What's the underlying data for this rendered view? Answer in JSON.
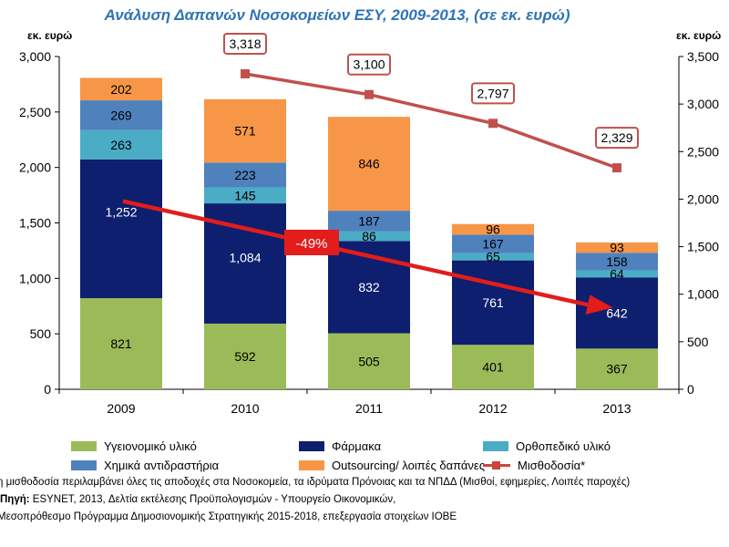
{
  "chart_data": {
    "type": "stacked-bar+line",
    "title": "Ανάλυση Δαπανών Νοσοκομείων ΕΣΥ, 2009-2013, (σε εκ. ευρώ)",
    "ylabel_left": "εκ. ευρώ",
    "ylabel_right": "εκ. ευρώ",
    "ylim_left": [
      0,
      3000
    ],
    "ylim_right": [
      0,
      3500
    ],
    "yticks_left": [
      "0",
      "500",
      "1,000",
      "1,500",
      "2,000",
      "2,500",
      "3,000"
    ],
    "yticks_right": [
      "0",
      "500",
      "1,000",
      "1,500",
      "2,000",
      "2,500",
      "3,000",
      "3,500"
    ],
    "categories": [
      "2009",
      "2010",
      "2011",
      "2012",
      "2013"
    ],
    "series": [
      {
        "name": "Υγειονομικό υλικό",
        "color": "#9bbb59",
        "values": [
          821,
          592,
          505,
          401,
          367
        ],
        "labels": [
          "821",
          "592",
          "505",
          "401",
          "367"
        ]
      },
      {
        "name": "Φάρμακα",
        "color": "#0d1f6e",
        "values": [
          1252,
          1084,
          832,
          761,
          642
        ],
        "labels": [
          "1,252",
          "1,084",
          "832",
          "761",
          "642"
        ]
      },
      {
        "name": "Ορθοπεδικό υλικό",
        "color": "#4bacc6",
        "values": [
          263,
          145,
          86,
          65,
          64
        ],
        "labels": [
          "263",
          "145",
          "86",
          "65",
          "64"
        ]
      },
      {
        "name": "Χημικά αντιδραστήρια",
        "color": "#4f81bd",
        "values": [
          269,
          223,
          187,
          167,
          158
        ],
        "labels": [
          "269",
          "223",
          "187",
          "167",
          "158"
        ]
      },
      {
        "name": "Outsourcing/ λοιπές δαπάνες",
        "color": "#f79646",
        "values": [
          202,
          571,
          846,
          96,
          93
        ],
        "labels": [
          "202",
          "571",
          "846",
          "96",
          "93"
        ]
      }
    ],
    "line_series": {
      "name": "Μισθοδοσία*",
      "color": "#c0504d",
      "axis": "right",
      "x": [
        "2010",
        "2011",
        "2012",
        "2013"
      ],
      "values": [
        3318,
        3100,
        2797,
        2329
      ],
      "labels": [
        "3,318",
        "3,100",
        "2,797",
        "2,329"
      ]
    },
    "annotation": {
      "text": "-49%",
      "from": "2009",
      "to": "2013",
      "color": "#e31c1c"
    }
  },
  "notes": {
    "line1": "η μισθοδοσία περιλαμβάνει όλες τις αποδοχές στα Νοσοκομεία, τα ιδρύματα Πρόνοιας και τα ΝΠΔΔ (Μισθοί, εφημερίες, Λοιπές παροχές)",
    "line2_prefix": "Πηγή:",
    "line2": " ESYNET, 2013, Δελτία εκτέλεσης Προϋπολογισμών - Υπουργείο Οικονομικών,",
    "line3": "Μεσοπρόθεσμο Πρόγραμμα Δημοσιονομικής Στρατηγικής 2015-2018, επεξεργασία στοιχείων ΙΟΒΕ"
  }
}
